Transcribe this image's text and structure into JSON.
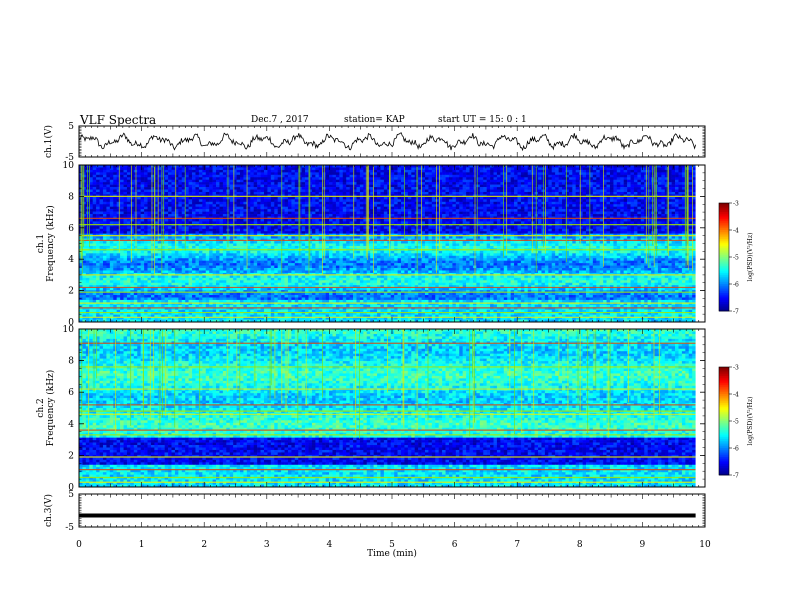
{
  "header": {
    "title": "VLF Spectra",
    "date": "Dec.7 , 2017",
    "station": "station= KAP",
    "start": "start UT = 15: 0 : 1"
  },
  "chart_data": [
    {
      "type": "line",
      "ylabel": "ch.1(V)",
      "x_range": [
        0,
        10
      ],
      "ylim": [
        -5,
        5
      ],
      "yticks": [
        5,
        -5
      ],
      "description_values": {
        "mean": 0,
        "amplitude": 1.5
      }
    },
    {
      "type": "heatmap",
      "ylabel_lines": [
        "ch.1",
        "Frequency (kHz)"
      ],
      "ylim": [
        0,
        10
      ],
      "yticks": [
        0,
        2,
        4,
        6,
        8,
        10
      ],
      "x_range": [
        0,
        10
      ],
      "colorbar": {
        "label": "log(PSD)(V²/Hz)",
        "min": -7,
        "max": -3,
        "ticks": [
          -3,
          -4,
          -5,
          -6,
          -7
        ]
      },
      "bands_khz": [
        0.3,
        0.6,
        0.9,
        1.2,
        1.9,
        2.2,
        3.0,
        4.6,
        5.2,
        5.5,
        6.2,
        6.6,
        8.0
      ],
      "dark_region_khz": [
        5.6,
        10
      ]
    },
    {
      "type": "heatmap",
      "ylabel_lines": [
        "ch.2",
        "Frequency (kHz)"
      ],
      "ylim": [
        0,
        10
      ],
      "yticks": [
        0,
        2,
        4,
        6,
        8,
        10
      ],
      "x_range": [
        0,
        10
      ],
      "colorbar": {
        "label": "log(PSD)(V²/Hz)",
        "min": -7,
        "max": -3,
        "ticks": [
          -3,
          -4,
          -5,
          -6,
          -7
        ]
      },
      "bands_khz": [
        0.3,
        0.6,
        1.1,
        1.9,
        3.3,
        3.6,
        4.6,
        4.8,
        5.2,
        6.2,
        7.6,
        9.1
      ],
      "dark_region_khz": [
        1.4,
        3.2
      ]
    },
    {
      "type": "line",
      "ylabel": "ch.3(V)",
      "x_range": [
        0,
        10
      ],
      "ylim": [
        -5,
        5
      ],
      "yticks": [
        5,
        -5
      ],
      "level_v": -1.5
    }
  ],
  "xaxis": {
    "label": "Time (min)",
    "ticks": [
      "0",
      "1",
      "2",
      "3",
      "4",
      "5",
      "6",
      "7",
      "8",
      "9",
      "10"
    ],
    "data_end_min": 9.85
  }
}
